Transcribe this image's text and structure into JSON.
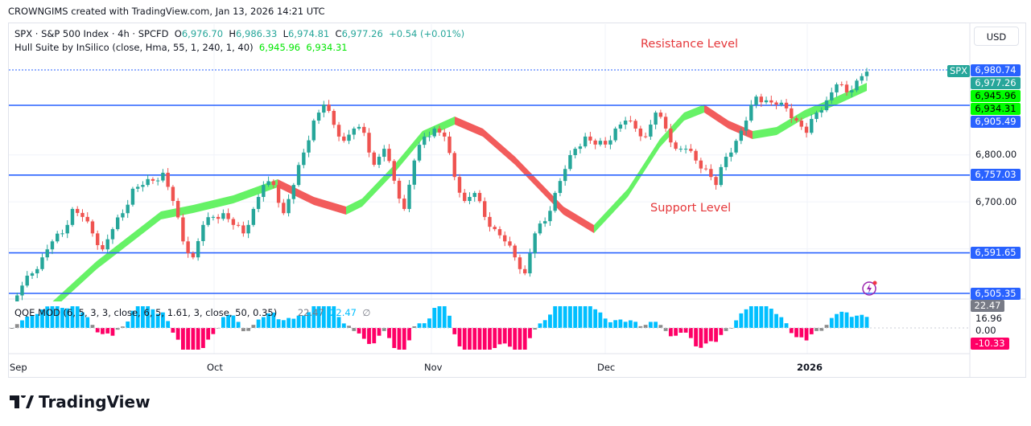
{
  "header": {
    "credit": "CROWNGIMS created with TradingView.com, Jan 13, 2026 14:21 UTC"
  },
  "legend": {
    "symbol": "SPX · S&P 500 Index · 4h · SPCFD",
    "o_label": "O",
    "o": "6,976.70",
    "h_label": "H",
    "h": "6,986.33",
    "l_label": "L",
    "l": "6,974.81",
    "c_label": "C",
    "c": "6,977.26",
    "change": "+0.54 (+0.01%)",
    "hull": "Hull Suite by InSilico (close, Hma, 55, 1, 240, 1, 40)",
    "hull_v1": "6,945.96",
    "hull_v2": "6,934.31"
  },
  "currency": "USD",
  "annotations": {
    "resistance": "Resistance Level",
    "support": "Support Level"
  },
  "price_axis": {
    "ticks": [
      "6,800.00",
      "6,700.00"
    ],
    "tags": [
      {
        "label": "6,980.74",
        "color": "#2962ff",
        "value": 6980.74
      },
      {
        "label": "6,977.26",
        "color": "#26a69a",
        "value": 6977.26
      },
      {
        "label": "6,945.96",
        "color": "#00ff00",
        "value": 6945.96
      },
      {
        "label": "6,934.31",
        "color": "#00ff00",
        "value": 6934.31
      },
      {
        "label": "6,905.49",
        "color": "#2962ff",
        "value": 6905.49
      },
      {
        "label": "6,757.03",
        "color": "#2962ff",
        "value": 6757.03
      },
      {
        "label": "6,591.65",
        "color": "#2962ff",
        "value": 6591.65
      },
      {
        "label": "6,505.35",
        "color": "#2962ff",
        "value": 6505.35
      }
    ],
    "symbol_tag": "SPX"
  },
  "qqe": {
    "legend": "QQE MOD (6, 5, 3, 3, close, 6, 5, 1.61, 3, close, 50, 0.35)",
    "v1": "22.47",
    "v2": "22.47",
    "v3": "∅",
    "axis": [
      "22.47",
      "16.96",
      "0.00",
      "-10.33"
    ]
  },
  "time_axis": [
    "Sep",
    "Oct",
    "Nov",
    "Dec",
    "2026"
  ],
  "brand": "TradingView",
  "chart_data": {
    "type": "candlestick",
    "symbol": "SPX",
    "interval": "4h",
    "ylim": [
      6480,
      6990
    ],
    "horizontal_levels": [
      6980.74,
      6905.49,
      6757.03,
      6591.65,
      6505.35
    ],
    "closes": [
      6480,
      6522,
      6548,
      6582,
      6616,
      6633,
      6685,
      6668,
      6633,
      6599,
      6642,
      6676,
      6728,
      6736,
      6745,
      6762,
      6702,
      6616,
      6582,
      6651,
      6668,
      6676,
      6651,
      6633,
      6685,
      6736,
      6736,
      6676,
      6736,
      6805,
      6873,
      6907,
      6864,
      6830,
      6856,
      6847,
      6779,
      6813,
      6745,
      6685,
      6788,
      6839,
      6856,
      6839,
      6753,
      6702,
      6719,
      6668,
      6642,
      6616,
      6582,
      6548,
      6633,
      6659,
      6719,
      6770,
      6813,
      6839,
      6822,
      6822,
      6856,
      6873,
      6856,
      6839,
      6890,
      6856,
      6813,
      6813,
      6788,
      6770,
      6736,
      6796,
      6830,
      6873,
      6924,
      6916,
      6907,
      6899,
      6873,
      6847,
      6890,
      6916,
      6950,
      6933,
      6958,
      6977
    ],
    "colors": {
      "up": "#26a69a",
      "down": "#ef5350",
      "hull_up": "#66f266",
      "hull_down": "#f25c5c",
      "level": "#2962ff",
      "qqe_up": "#00bfff",
      "qqe_down": "#ff0066",
      "qqe_neutral": "#8c8c8c"
    }
  }
}
